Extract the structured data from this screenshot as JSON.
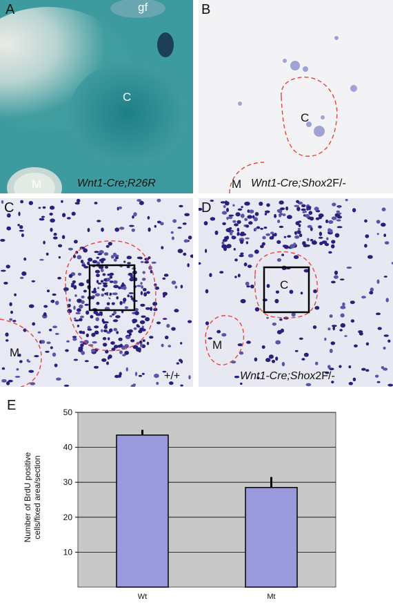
{
  "panels": {
    "a": {
      "letter": "A",
      "gf": "gf",
      "c": "C",
      "m": "M",
      "geno_italic": "Wnt1-Cre;R26R"
    },
    "b": {
      "letter": "B",
      "c": "C",
      "m": "M",
      "geno_italic": "Wnt1-Cre;",
      "geno_gene": "Shox",
      "geno_allele": "2F/-"
    },
    "c": {
      "letter": "C",
      "c": "C",
      "m": "M",
      "geno": "+/+"
    },
    "d": {
      "letter": "D",
      "c": "C",
      "m": "M",
      "geno_italic": "Wnt1-Cre;",
      "geno_gene": "Shox",
      "geno_allele": "2F/-"
    },
    "e": {
      "letter": "E"
    }
  },
  "colors": {
    "teal": "#2e8f94",
    "stain": "#2a1f7a",
    "outline": "#e0463c",
    "bar": "#9999dd",
    "plot_bg": "#c8c8c8"
  },
  "chart_data": {
    "type": "bar",
    "categories": [
      "Wt",
      "Mt"
    ],
    "values": [
      43.5,
      28.5
    ],
    "errors": [
      1.5,
      3.0
    ],
    "ylabel_line1": "Number of BrdU positive",
    "ylabel_line2": "cells/fixed area/section",
    "yticks": [
      10,
      20,
      30,
      40,
      50
    ],
    "ylim": [
      0,
      50
    ],
    "grid": true,
    "title": ""
  }
}
